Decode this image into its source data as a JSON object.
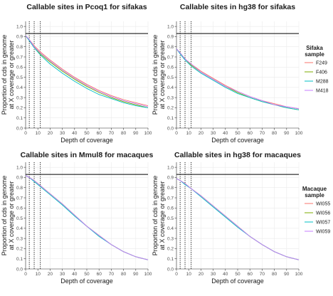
{
  "chart_data": [
    {
      "type": "line",
      "title": "Callable sites in Pcoq1 for sifakas",
      "xlabel": "Depth of coverage",
      "ylabel": "Proportion of cds in genome\nat X coverage or greater",
      "xlim": [
        0,
        100
      ],
      "ylim": [
        0,
        1.05
      ],
      "xticks": [
        0,
        10,
        20,
        30,
        40,
        50,
        60,
        70,
        80,
        90,
        100
      ],
      "yticks": [
        0.0,
        0.1,
        0.2,
        0.3,
        0.4,
        0.5,
        0.6,
        0.7,
        0.8,
        0.9,
        1.0
      ],
      "hline": 0.93,
      "vlines": [
        3,
        7,
        12
      ],
      "grid": true,
      "series": [
        {
          "name": "F249",
          "color": "#f8766d",
          "x": [
            0,
            3,
            7,
            12,
            20,
            30,
            40,
            50,
            60,
            70,
            80,
            90,
            100
          ],
          "values": [
            0.91,
            0.87,
            0.81,
            0.75,
            0.67,
            0.58,
            0.5,
            0.43,
            0.37,
            0.32,
            0.28,
            0.25,
            0.22
          ]
        },
        {
          "name": "F406",
          "color": "#7cae00",
          "x": [
            0,
            3,
            7,
            12,
            20,
            30,
            40,
            50,
            60,
            70,
            80,
            90,
            100
          ],
          "values": [
            0.91,
            0.86,
            0.8,
            0.73,
            0.65,
            0.56,
            0.48,
            0.41,
            0.35,
            0.3,
            0.26,
            0.23,
            0.2
          ]
        },
        {
          "name": "M288",
          "color": "#00bfc4",
          "x": [
            0,
            3,
            7,
            12,
            20,
            30,
            40,
            50,
            60,
            70,
            80,
            90,
            100
          ],
          "values": [
            0.91,
            0.86,
            0.79,
            0.72,
            0.63,
            0.54,
            0.46,
            0.39,
            0.33,
            0.29,
            0.25,
            0.22,
            0.2
          ]
        },
        {
          "name": "M418",
          "color": "#c77cff",
          "x": [
            0,
            3,
            7,
            12,
            20,
            30,
            40,
            50,
            60,
            70,
            80,
            90,
            100
          ],
          "values": [
            0.91,
            0.87,
            0.8,
            0.74,
            0.66,
            0.57,
            0.49,
            0.42,
            0.36,
            0.31,
            0.27,
            0.24,
            0.21
          ]
        }
      ]
    },
    {
      "type": "line",
      "title": "Callable sites in hg38 for sifakas",
      "xlabel": "Depth of coverage",
      "ylabel": "Proportion of cds in genome\nat X coverage or greater",
      "xlim": [
        0,
        100
      ],
      "ylim": [
        0,
        1.05
      ],
      "xticks": [
        0,
        10,
        20,
        30,
        40,
        50,
        60,
        70,
        80,
        90,
        100
      ],
      "yticks": [
        0.0,
        0.1,
        0.2,
        0.3,
        0.4,
        0.5,
        0.6,
        0.7,
        0.8,
        0.9,
        1.0
      ],
      "hline": 0.93,
      "vlines": [
        3,
        7,
        12
      ],
      "grid": true,
      "legend": {
        "title": "Sifaka\nsample",
        "position": "right"
      },
      "series": [
        {
          "name": "F249",
          "color": "#f8766d",
          "x": [
            0,
            3,
            7,
            12,
            20,
            30,
            40,
            50,
            60,
            70,
            80,
            90,
            100
          ],
          "values": [
            0.78,
            0.74,
            0.68,
            0.63,
            0.56,
            0.49,
            0.42,
            0.36,
            0.31,
            0.27,
            0.24,
            0.21,
            0.19
          ]
        },
        {
          "name": "F406",
          "color": "#7cae00",
          "x": [
            0,
            3,
            7,
            12,
            20,
            30,
            40,
            50,
            60,
            70,
            80,
            90,
            100
          ],
          "values": [
            0.78,
            0.74,
            0.68,
            0.62,
            0.55,
            0.48,
            0.41,
            0.35,
            0.3,
            0.26,
            0.23,
            0.2,
            0.18
          ]
        },
        {
          "name": "M288",
          "color": "#00bfc4",
          "x": [
            0,
            3,
            7,
            12,
            20,
            30,
            40,
            50,
            60,
            70,
            80,
            90,
            100
          ],
          "values": [
            0.78,
            0.73,
            0.67,
            0.61,
            0.54,
            0.47,
            0.4,
            0.34,
            0.3,
            0.26,
            0.23,
            0.2,
            0.18
          ]
        },
        {
          "name": "M418",
          "color": "#c77cff",
          "x": [
            0,
            3,
            7,
            12,
            20,
            30,
            40,
            50,
            60,
            70,
            80,
            90,
            100
          ],
          "values": [
            0.78,
            0.74,
            0.68,
            0.63,
            0.55,
            0.48,
            0.41,
            0.36,
            0.31,
            0.27,
            0.23,
            0.21,
            0.19
          ]
        }
      ]
    },
    {
      "type": "line",
      "title": "Callable sites in Mmul8 for macaques",
      "xlabel": "Depth of coverage",
      "ylabel": "Proportion of cds in genome\nat X coverage or greater",
      "xlim": [
        0,
        100
      ],
      "ylim": [
        0,
        1.05
      ],
      "xticks": [
        0,
        10,
        20,
        30,
        40,
        50,
        60,
        70,
        80,
        90,
        100
      ],
      "yticks": [
        0.0,
        0.1,
        0.2,
        0.3,
        0.4,
        0.5,
        0.6,
        0.7,
        0.8,
        0.9,
        1.0
      ],
      "hline": 0.93,
      "vlines": [
        3,
        7,
        12
      ],
      "grid": true,
      "series": [
        {
          "name": "WI055",
          "color": "#f8766d",
          "x": [
            0,
            3,
            7,
            12,
            20,
            30,
            40,
            50,
            60,
            70,
            80,
            90,
            100
          ],
          "values": [
            0.92,
            0.9,
            0.87,
            0.82,
            0.74,
            0.64,
            0.53,
            0.42,
            0.33,
            0.24,
            0.17,
            0.12,
            0.09
          ]
        },
        {
          "name": "WI056",
          "color": "#7cae00",
          "x": [
            0,
            3,
            7,
            12,
            20,
            30,
            40,
            50,
            60,
            70,
            80,
            90,
            100
          ],
          "values": [
            0.92,
            0.9,
            0.87,
            0.82,
            0.74,
            0.64,
            0.53,
            0.42,
            0.33,
            0.24,
            0.17,
            0.12,
            0.09
          ]
        },
        {
          "name": "WI057",
          "color": "#00bfc4",
          "x": [
            0,
            3,
            7,
            12,
            20,
            30,
            40,
            50,
            60,
            70,
            80,
            90,
            100
          ],
          "values": [
            0.92,
            0.9,
            0.86,
            0.81,
            0.73,
            0.63,
            0.52,
            0.42,
            0.32,
            0.24,
            0.17,
            0.12,
            0.09
          ]
        },
        {
          "name": "WI059",
          "color": "#c77cff",
          "x": [
            0,
            3,
            7,
            12,
            20,
            30,
            40,
            50,
            60,
            70,
            80,
            90,
            100
          ],
          "values": [
            0.92,
            0.9,
            0.87,
            0.82,
            0.74,
            0.64,
            0.53,
            0.42,
            0.33,
            0.24,
            0.17,
            0.12,
            0.09
          ]
        }
      ]
    },
    {
      "type": "line",
      "title": "Callable sites in hg38 for macaques",
      "xlabel": "Depth of coverage",
      "ylabel": "Proportion of cds in genome\nat X coverage or greater",
      "xlim": [
        0,
        100
      ],
      "ylim": [
        0,
        1.05
      ],
      "xticks": [
        0,
        10,
        20,
        30,
        40,
        50,
        60,
        70,
        80,
        90,
        100
      ],
      "yticks": [
        0.0,
        0.1,
        0.2,
        0.3,
        0.4,
        0.5,
        0.6,
        0.7,
        0.8,
        0.9,
        1.0
      ],
      "hline": 0.93,
      "vlines": [
        3,
        7,
        12
      ],
      "grid": true,
      "legend": {
        "title": "Macaque\nsample",
        "position": "right"
      },
      "series": [
        {
          "name": "WI055",
          "color": "#f8766d",
          "x": [
            0,
            3,
            7,
            12,
            20,
            30,
            40,
            50,
            60,
            70,
            80,
            90,
            100
          ],
          "values": [
            0.89,
            0.87,
            0.84,
            0.79,
            0.72,
            0.62,
            0.52,
            0.42,
            0.32,
            0.24,
            0.17,
            0.12,
            0.09
          ]
        },
        {
          "name": "WI056",
          "color": "#7cae00",
          "x": [
            0,
            3,
            7,
            12,
            20,
            30,
            40,
            50,
            60,
            70,
            80,
            90,
            100
          ],
          "values": [
            0.89,
            0.87,
            0.84,
            0.79,
            0.72,
            0.62,
            0.52,
            0.42,
            0.32,
            0.24,
            0.17,
            0.12,
            0.09
          ]
        },
        {
          "name": "WI057",
          "color": "#00bfc4",
          "x": [
            0,
            3,
            7,
            12,
            20,
            30,
            40,
            50,
            60,
            70,
            80,
            90,
            100
          ],
          "values": [
            0.89,
            0.87,
            0.83,
            0.79,
            0.71,
            0.61,
            0.51,
            0.41,
            0.32,
            0.24,
            0.17,
            0.12,
            0.09
          ]
        },
        {
          "name": "WI059",
          "color": "#c77cff",
          "x": [
            0,
            3,
            7,
            12,
            20,
            30,
            40,
            50,
            60,
            70,
            80,
            90,
            100
          ],
          "values": [
            0.89,
            0.87,
            0.84,
            0.79,
            0.72,
            0.62,
            0.52,
            0.42,
            0.32,
            0.24,
            0.17,
            0.12,
            0.09
          ]
        }
      ]
    }
  ]
}
